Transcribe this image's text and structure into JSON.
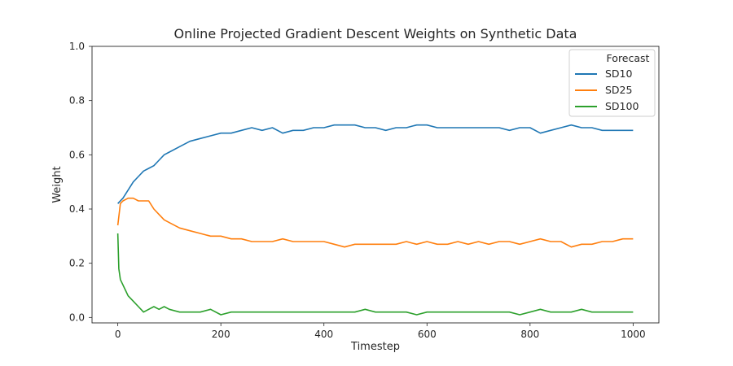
{
  "chart_data": {
    "type": "line",
    "title": "Online Projected Gradient Descent Weights on Synthetic Data",
    "xlabel": "Timestep",
    "ylabel": "Weight",
    "xlim": [
      -50,
      1050
    ],
    "ylim": [
      -0.02,
      1.0
    ],
    "xticks": [
      0,
      200,
      400,
      600,
      800,
      1000
    ],
    "yticks": [
      0.0,
      0.2,
      0.4,
      0.6,
      0.8,
      1.0
    ],
    "ytick_labels": [
      "0.0",
      "0.2",
      "0.4",
      "0.6",
      "0.8",
      "1.0"
    ],
    "grid": false,
    "legend": {
      "title": "Forecast",
      "placement": "top-right"
    },
    "series": [
      {
        "name": "SD10",
        "color": "#1f77b4",
        "x": [
          0,
          10,
          20,
          30,
          40,
          50,
          60,
          70,
          80,
          90,
          100,
          120,
          140,
          160,
          180,
          200,
          220,
          240,
          260,
          280,
          300,
          320,
          340,
          360,
          380,
          400,
          420,
          440,
          460,
          480,
          500,
          520,
          540,
          560,
          580,
          600,
          620,
          640,
          660,
          680,
          700,
          720,
          740,
          760,
          780,
          800,
          820,
          840,
          860,
          880,
          900,
          920,
          940,
          960,
          980,
          1000
        ],
        "values": [
          0.42,
          0.44,
          0.47,
          0.5,
          0.52,
          0.54,
          0.55,
          0.56,
          0.58,
          0.6,
          0.61,
          0.63,
          0.65,
          0.66,
          0.67,
          0.68,
          0.68,
          0.69,
          0.7,
          0.69,
          0.7,
          0.68,
          0.69,
          0.69,
          0.7,
          0.7,
          0.71,
          0.71,
          0.71,
          0.7,
          0.7,
          0.69,
          0.7,
          0.7,
          0.71,
          0.71,
          0.7,
          0.7,
          0.7,
          0.7,
          0.7,
          0.7,
          0.7,
          0.69,
          0.7,
          0.7,
          0.68,
          0.69,
          0.7,
          0.71,
          0.7,
          0.7,
          0.69,
          0.69,
          0.69,
          0.69
        ]
      },
      {
        "name": "SD25",
        "color": "#ff7f0e",
        "x": [
          0,
          5,
          10,
          20,
          30,
          40,
          50,
          60,
          70,
          80,
          90,
          100,
          120,
          140,
          160,
          180,
          200,
          220,
          240,
          260,
          280,
          300,
          320,
          340,
          360,
          380,
          400,
          420,
          440,
          460,
          480,
          500,
          520,
          540,
          560,
          580,
          600,
          620,
          640,
          660,
          680,
          700,
          720,
          740,
          760,
          780,
          800,
          820,
          840,
          860,
          880,
          900,
          920,
          940,
          960,
          980,
          1000
        ],
        "values": [
          0.34,
          0.42,
          0.43,
          0.44,
          0.44,
          0.43,
          0.43,
          0.43,
          0.4,
          0.38,
          0.36,
          0.35,
          0.33,
          0.32,
          0.31,
          0.3,
          0.3,
          0.29,
          0.29,
          0.28,
          0.28,
          0.28,
          0.29,
          0.28,
          0.28,
          0.28,
          0.28,
          0.27,
          0.26,
          0.27,
          0.27,
          0.27,
          0.27,
          0.27,
          0.28,
          0.27,
          0.28,
          0.27,
          0.27,
          0.28,
          0.27,
          0.28,
          0.27,
          0.28,
          0.28,
          0.27,
          0.28,
          0.29,
          0.28,
          0.28,
          0.26,
          0.27,
          0.27,
          0.28,
          0.28,
          0.29,
          0.29
        ]
      },
      {
        "name": "SD100",
        "color": "#2ca02c",
        "x": [
          0,
          2,
          5,
          10,
          15,
          20,
          30,
          40,
          50,
          60,
          70,
          80,
          90,
          100,
          120,
          140,
          160,
          180,
          200,
          220,
          240,
          260,
          280,
          300,
          320,
          340,
          360,
          380,
          400,
          420,
          440,
          460,
          480,
          500,
          520,
          540,
          560,
          580,
          600,
          620,
          640,
          660,
          680,
          700,
          720,
          740,
          760,
          780,
          800,
          820,
          840,
          860,
          880,
          900,
          920,
          940,
          960,
          980,
          1000
        ],
        "values": [
          0.31,
          0.18,
          0.14,
          0.12,
          0.1,
          0.08,
          0.06,
          0.04,
          0.02,
          0.03,
          0.04,
          0.03,
          0.04,
          0.03,
          0.02,
          0.02,
          0.02,
          0.03,
          0.01,
          0.02,
          0.02,
          0.02,
          0.02,
          0.02,
          0.02,
          0.02,
          0.02,
          0.02,
          0.02,
          0.02,
          0.02,
          0.02,
          0.03,
          0.02,
          0.02,
          0.02,
          0.02,
          0.01,
          0.02,
          0.02,
          0.02,
          0.02,
          0.02,
          0.02,
          0.02,
          0.02,
          0.02,
          0.01,
          0.02,
          0.03,
          0.02,
          0.02,
          0.02,
          0.03,
          0.02,
          0.02,
          0.02,
          0.02,
          0.02
        ]
      }
    ]
  }
}
